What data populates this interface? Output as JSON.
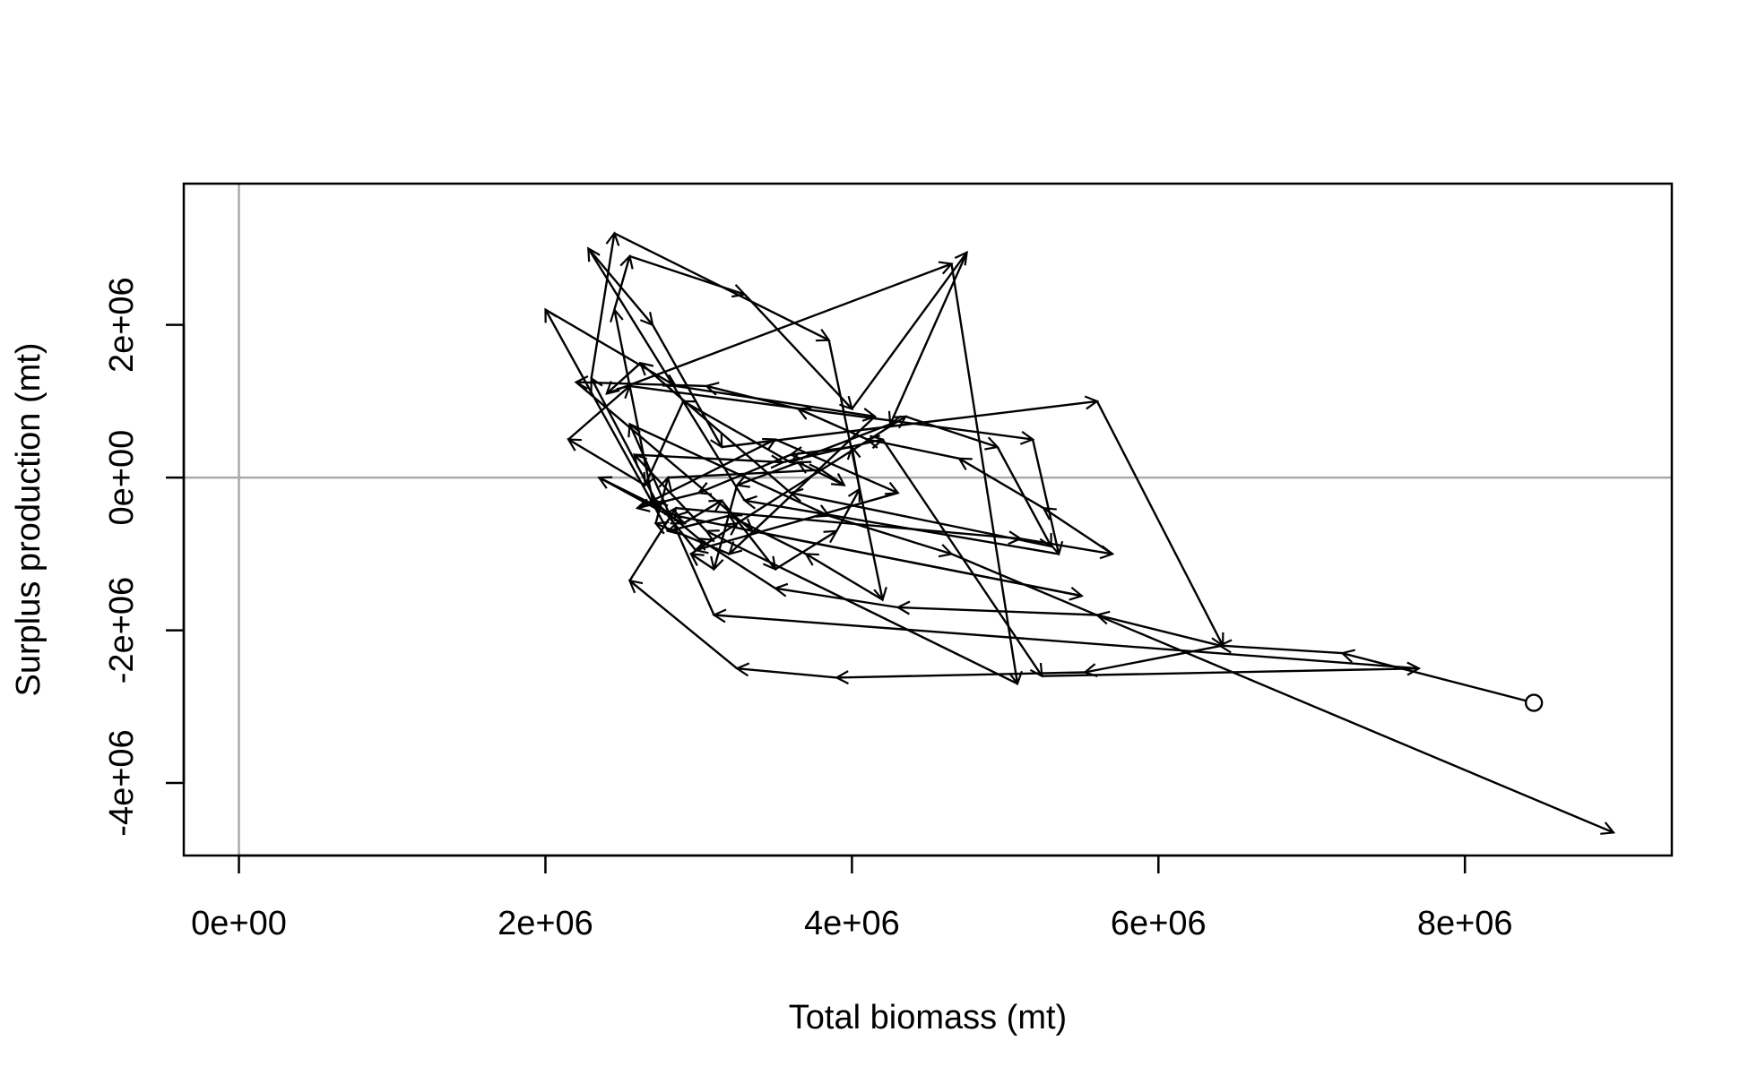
{
  "chart_data": {
    "type": "line",
    "title": "",
    "xlabel": "Total biomass (mt)",
    "ylabel": "Surplus production (mt)",
    "xlim": [
      -360000,
      9350000
    ],
    "ylim": [
      -4950000,
      3850000
    ],
    "x_ticks": [
      {
        "value": 0,
        "label": "0e+00"
      },
      {
        "value": 2000000,
        "label": "2e+06"
      },
      {
        "value": 4000000,
        "label": "4e+06"
      },
      {
        "value": 6000000,
        "label": "6e+06"
      },
      {
        "value": 8000000,
        "label": "8e+06"
      }
    ],
    "y_ticks": [
      {
        "value": -4000000,
        "label": "-4e+06"
      },
      {
        "value": -2000000,
        "label": "-2e+06"
      },
      {
        "value": 0,
        "label": "0e+00"
      },
      {
        "value": 2000000,
        "label": "2e+06"
      }
    ],
    "reference_lines": {
      "vertical": 0,
      "horizontal": 0,
      "color": "#aaaaaa"
    },
    "start_marker": "open-circle",
    "arrows": true,
    "grid": false,
    "colors": {
      "series": "#000000",
      "reference": "#aaaaaa",
      "frame": "#000000"
    },
    "series": [
      {
        "x": [
          8450000,
          7200000,
          6400000,
          5600000,
          4300000,
          3500000,
          3000000,
          2700000,
          2450000,
          2550000,
          3300000,
          4000000,
          4750000,
          4250000,
          3600000,
          2900000,
          2650000,
          2150000,
          2550000,
          5180000,
          5350000,
          3300000,
          2280000,
          2700000,
          3150000,
          5600000,
          6420000,
          5520000,
          3900000,
          3250000,
          2550000,
          2850000,
          5100000,
          5700000,
          5250000,
          4700000,
          4100000,
          3650000,
          3050000,
          2200000,
          3350000,
          5500000,
          2850000,
          2350000,
          2900000,
          3150000,
          3500000,
          3900000,
          4050000,
          4000000,
          3600000,
          3000000,
          2600000,
          3500000,
          4300000,
          2980000,
          2720000,
          2300000,
          2450000,
          3850000,
          4200000,
          3700000,
          3200000,
          2800000,
          2000000,
          2850000,
          4150000,
          3200000,
          2720000,
          2800000,
          3800000,
          3950000,
          3650000,
          3250000,
          3100000,
          2950000,
          3250000,
          4350000,
          4950000,
          5300000,
          3600000,
          2620000,
          2400000,
          4650000,
          5080000,
          3050000,
          2580000,
          3550000,
          4200000,
          5240000,
          7700000,
          3100000,
          2550000,
          3850000,
          4650000,
          8970000
        ],
        "y": [
          -2950000,
          -2300000,
          -2200000,
          -1800000,
          -1700000,
          -1450000,
          -800000,
          -300000,
          2200000,
          2900000,
          2400000,
          900000,
          2950000,
          700000,
          200000,
          1000000,
          -100000,
          500000,
          1200000,
          500000,
          -1000000,
          -300000,
          3000000,
          2000000,
          400000,
          1000000,
          -2200000,
          -2550000,
          -2620000,
          -2500000,
          -1350000,
          -400000,
          -800000,
          -1000000,
          -400000,
          250000,
          500000,
          900000,
          1200000,
          1250000,
          -700000,
          -1550000,
          -500000,
          0,
          -600000,
          -300000,
          -1200000,
          -700000,
          -150000,
          400000,
          300000,
          -200000,
          -400000,
          500000,
          -200000,
          -950000,
          -300000,
          1300000,
          3200000,
          1800000,
          -1600000,
          -1000000,
          -500000,
          -700000,
          2200000,
          1200000,
          800000,
          -1000000,
          -600000,
          0,
          100000,
          -100000,
          200000,
          -100000,
          -1200000,
          -1000000,
          -600000,
          800000,
          400000,
          -900000,
          -200000,
          1500000,
          1100000,
          2800000,
          -2700000,
          -700000,
          300000,
          200000,
          500000,
          -2600000,
          -2500000,
          -1800000,
          700000,
          -500000,
          -1000000,
          -4650000
        ]
      }
    ]
  }
}
